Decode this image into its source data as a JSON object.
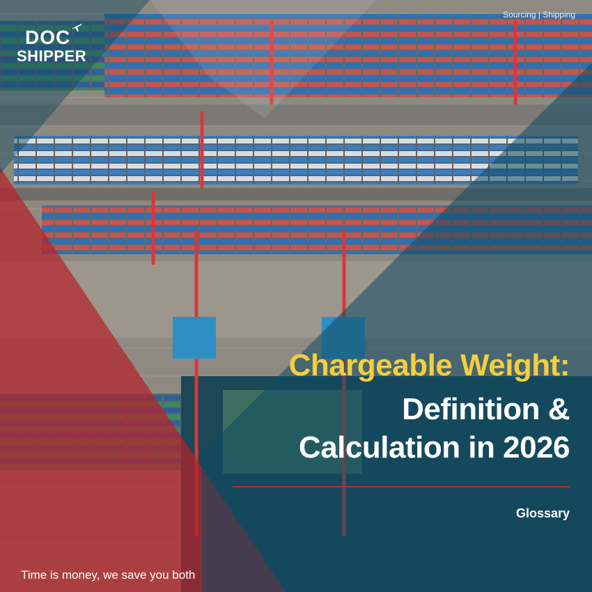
{
  "brand": {
    "logo_line1": "DOC",
    "logo_line2": "SHIPPER",
    "logo_icon": "airplane-icon"
  },
  "header": {
    "tags": "Sourcing | Shipping"
  },
  "title": {
    "line1": "Chargeable Weight:",
    "line2": "Definition &",
    "line3": "Calculation in 2026"
  },
  "category": "Glossary",
  "tagline": "Time is money, we save you both",
  "colors": {
    "accent_yellow": "#f3cf3f",
    "brand_red": "#c8242c",
    "overlay_teal": "#0f4a62"
  }
}
